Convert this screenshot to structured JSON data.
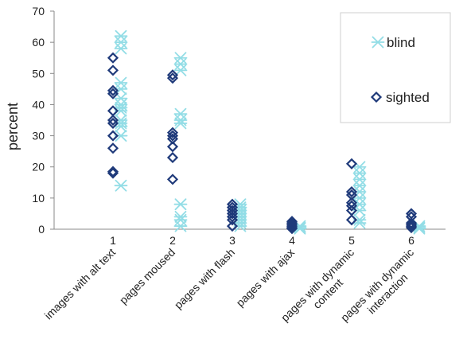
{
  "chart_data": {
    "type": "scatter",
    "title": "",
    "xlabel": "",
    "ylabel": "percent",
    "ylim": [
      0,
      70
    ],
    "yticks": [
      0,
      10,
      20,
      30,
      40,
      50,
      60,
      70
    ],
    "grid": false,
    "legend_position": "top-right",
    "categories": [
      {
        "tick": "1",
        "label_lines": [
          "images with alt text"
        ]
      },
      {
        "tick": "2",
        "label_lines": [
          "pages moused"
        ]
      },
      {
        "tick": "3",
        "label_lines": [
          "pages with flash"
        ]
      },
      {
        "tick": "4",
        "label_lines": [
          "pages with ajax"
        ]
      },
      {
        "tick": "5",
        "label_lines": [
          "pages with dynamic",
          "content"
        ]
      },
      {
        "tick": "6",
        "label_lines": [
          "pages with dynamic",
          "interaction"
        ]
      }
    ],
    "series": [
      {
        "name": "blind",
        "marker": "asterisk",
        "color": "#93dde6",
        "points": [
          [
            1,
            62
          ],
          [
            1,
            60
          ],
          [
            1,
            58
          ],
          [
            1,
            47
          ],
          [
            1,
            45
          ],
          [
            1,
            42
          ],
          [
            1,
            40
          ],
          [
            1,
            39
          ],
          [
            1,
            38
          ],
          [
            1,
            35
          ],
          [
            1,
            34
          ],
          [
            1,
            33
          ],
          [
            1,
            30
          ],
          [
            1,
            14
          ],
          [
            2,
            55
          ],
          [
            2,
            53
          ],
          [
            2,
            51
          ],
          [
            2,
            37
          ],
          [
            2,
            35
          ],
          [
            2,
            34
          ],
          [
            2,
            8
          ],
          [
            2,
            4
          ],
          [
            2,
            3
          ],
          [
            2,
            1
          ],
          [
            3,
            8
          ],
          [
            3,
            7
          ],
          [
            3,
            6
          ],
          [
            3,
            5
          ],
          [
            3,
            4
          ],
          [
            3,
            3
          ],
          [
            3,
            2
          ],
          [
            3,
            1
          ],
          [
            4,
            1
          ],
          [
            4,
            0.5
          ],
          [
            4,
            0.2
          ],
          [
            5,
            20
          ],
          [
            5,
            18
          ],
          [
            5,
            16
          ],
          [
            5,
            14
          ],
          [
            5,
            12
          ],
          [
            5,
            10
          ],
          [
            5,
            8
          ],
          [
            5,
            6
          ],
          [
            5,
            3
          ],
          [
            5,
            2
          ],
          [
            6,
            1
          ],
          [
            6,
            0.5
          ],
          [
            6,
            0.2
          ]
        ]
      },
      {
        "name": "sighted",
        "marker": "diamond",
        "color": "#1f3a7a",
        "points": [
          [
            1,
            55
          ],
          [
            1,
            51
          ],
          [
            1,
            44.5
          ],
          [
            1,
            43.5
          ],
          [
            1,
            38
          ],
          [
            1,
            35
          ],
          [
            1,
            34
          ],
          [
            1,
            30
          ],
          [
            1,
            26
          ],
          [
            1,
            18.5
          ],
          [
            1,
            18
          ],
          [
            2,
            49.5
          ],
          [
            2,
            48.5
          ],
          [
            2,
            31
          ],
          [
            2,
            30
          ],
          [
            2,
            29
          ],
          [
            2,
            26.5
          ],
          [
            2,
            23
          ],
          [
            2,
            16
          ],
          [
            3,
            8
          ],
          [
            3,
            7
          ],
          [
            3,
            6
          ],
          [
            3,
            5
          ],
          [
            3,
            4
          ],
          [
            3,
            3
          ],
          [
            3,
            1
          ],
          [
            4,
            2.5
          ],
          [
            4,
            2
          ],
          [
            4,
            1.5
          ],
          [
            4,
            1
          ],
          [
            4,
            0.5
          ],
          [
            4,
            0.2
          ],
          [
            5,
            21
          ],
          [
            5,
            12
          ],
          [
            5,
            11
          ],
          [
            5,
            8.5
          ],
          [
            5,
            7.5
          ],
          [
            5,
            6
          ],
          [
            5,
            3
          ],
          [
            6,
            5
          ],
          [
            6,
            4
          ],
          [
            6,
            2
          ],
          [
            6,
            1.5
          ],
          [
            6,
            1
          ],
          [
            6,
            0.5
          ]
        ]
      }
    ]
  }
}
